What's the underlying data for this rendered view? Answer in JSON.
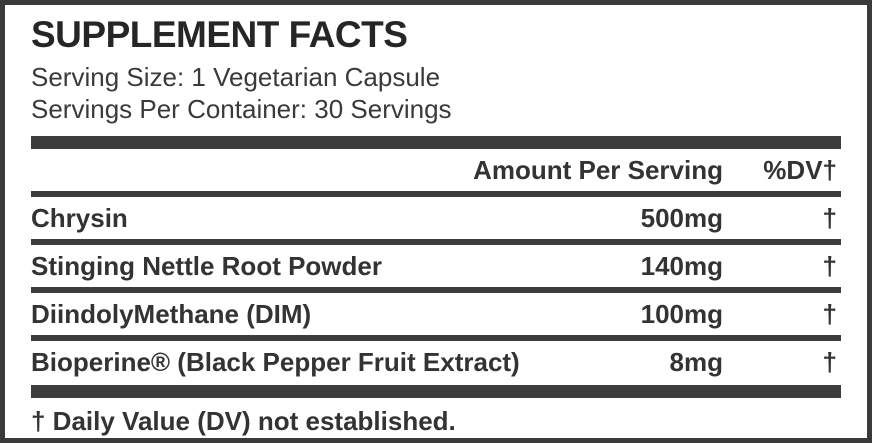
{
  "label": {
    "title": "SUPPLEMENT FACTS",
    "serving_size": "Serving Size: 1 Vegetarian Capsule",
    "servings_per_container": "Servings Per Container: 30 Servings",
    "table": {
      "columns": {
        "amount_header": "Amount Per Serving",
        "dv_header": "%DV†"
      },
      "rows": [
        {
          "name": "Chrysin",
          "amount": "500mg",
          "dv": "†"
        },
        {
          "name": "Stinging Nettle Root Powder",
          "amount": "140mg",
          "dv": "†"
        },
        {
          "name": "DiindolyMethane (DIM)",
          "amount": "100mg",
          "dv": "†"
        },
        {
          "name": "Bioperine® (Black Pepper Fruit Extract)",
          "amount": "8mg",
          "dv": "†"
        }
      ]
    },
    "footnote": "† Daily Value (DV) not established.",
    "colors": {
      "background": "#ffffff",
      "text": "#333333",
      "bar": "#3d3d3d",
      "border": "#3a3a3a"
    }
  }
}
